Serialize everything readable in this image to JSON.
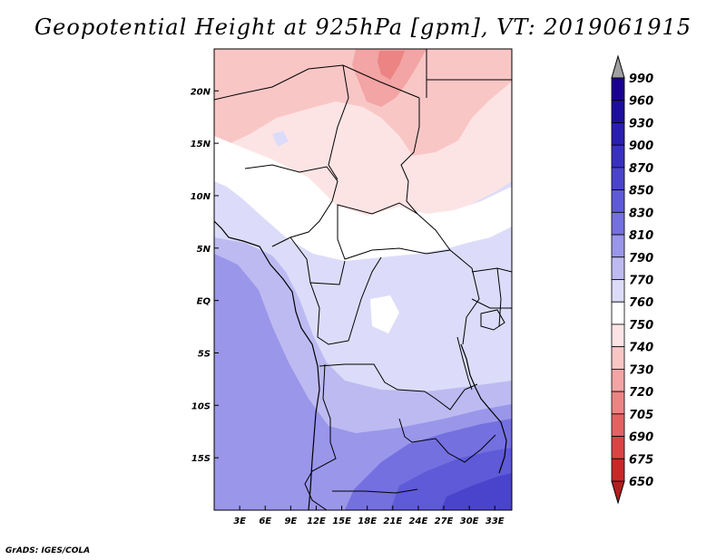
{
  "title": "Geopotential Height at 925hPa [gpm], VT: 2019061915",
  "credit": "GrADS: IGES/COLA",
  "map": {
    "lon_range": [
      0,
      35
    ],
    "lat_range": [
      -20,
      24
    ],
    "lon_ticks": [
      {
        "value": 3,
        "label": "3E"
      },
      {
        "value": 6,
        "label": "6E"
      },
      {
        "value": 9,
        "label": "9E"
      },
      {
        "value": 12,
        "label": "12E"
      },
      {
        "value": 15,
        "label": "15E"
      },
      {
        "value": 18,
        "label": "18E"
      },
      {
        "value": 21,
        "label": "21E"
      },
      {
        "value": 24,
        "label": "24E"
      },
      {
        "value": 27,
        "label": "27E"
      },
      {
        "value": 30,
        "label": "30E"
      },
      {
        "value": 33,
        "label": "33E"
      }
    ],
    "lat_ticks": [
      {
        "value": 20,
        "label": "20N"
      },
      {
        "value": 15,
        "label": "15N"
      },
      {
        "value": 10,
        "label": "10N"
      },
      {
        "value": 5,
        "label": "5N"
      },
      {
        "value": 0,
        "label": "EQ"
      },
      {
        "value": -5,
        "label": "5S"
      },
      {
        "value": -10,
        "label": "10S"
      },
      {
        "value": -15,
        "label": "15S"
      }
    ]
  },
  "colorbar": {
    "levels": [
      {
        "label": "990",
        "color": "#1a0090"
      },
      {
        "label": "960",
        "color": "#1e0ea0"
      },
      {
        "label": "930",
        "color": "#2a1eb0"
      },
      {
        "label": "900",
        "color": "#3a30c0"
      },
      {
        "label": "870",
        "color": "#4a44cc"
      },
      {
        "label": "850",
        "color": "#5e5ad8"
      },
      {
        "label": "830",
        "color": "#7470e0"
      },
      {
        "label": "810",
        "color": "#9a96ea"
      },
      {
        "label": "790",
        "color": "#bdbaf2"
      },
      {
        "label": "770",
        "color": "#dcdcfa"
      },
      {
        "label": "760",
        "color": "#ffffff"
      },
      {
        "label": "750",
        "color": "#fde4e4"
      },
      {
        "label": "740",
        "color": "#f9c6c6"
      },
      {
        "label": "730",
        "color": "#f3a4a4"
      },
      {
        "label": "720",
        "color": "#ec8484"
      },
      {
        "label": "705",
        "color": "#e46262"
      },
      {
        "label": "690",
        "color": "#dc4444"
      },
      {
        "label": "675",
        "color": "#c82828"
      },
      {
        "label": "650",
        "color": "#a81414"
      }
    ],
    "over_color": "#a0a0a0",
    "under_color": "#b41e1e"
  }
}
